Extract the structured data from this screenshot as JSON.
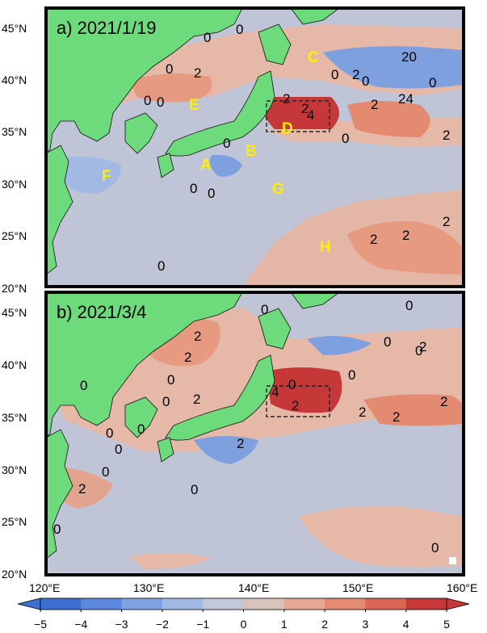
{
  "panels": [
    {
      "title": "a) 2021/1/19",
      "regions": [
        "A",
        "B",
        "C",
        "D",
        "E",
        "F",
        "G",
        "H"
      ],
      "contour_labels": [
        "0",
        "0",
        "0",
        "2",
        "0",
        "0",
        "2",
        "0",
        "0",
        "2",
        "20",
        "0",
        "2",
        "24",
        "2",
        "4",
        "0",
        "2",
        "0",
        "0",
        "0",
        "2",
        "2",
        "2",
        "0"
      ]
    },
    {
      "title": "b) 2021/3/4",
      "contour_labels": [
        "0",
        "2",
        "2",
        "0",
        "0",
        "2",
        "0",
        "0",
        "4",
        "0",
        "2",
        "0",
        "2",
        "2",
        "0",
        "0",
        "2",
        "2",
        "0",
        "0",
        "0",
        "0",
        "0",
        "0",
        "2",
        "0",
        "2"
      ]
    }
  ],
  "y_ticks": [
    "45°N",
    "40°N",
    "35°N",
    "30°N",
    "25°N",
    "20°N"
  ],
  "x_ticks": [
    "120°E",
    "130°E",
    "140°E",
    "150°E",
    "160°E"
  ],
  "colorbar": {
    "ticks": [
      "−5",
      "−4",
      "−3",
      "−2",
      "−1",
      "0",
      "1",
      "2",
      "3",
      "4",
      "5"
    ],
    "colors": [
      "#3d6fd1",
      "#5d87dc",
      "#7fa1e2",
      "#a2b9e4",
      "#c0c8da",
      "#d8c2bc",
      "#e7a995",
      "#e38a71",
      "#da6655",
      "#c63838"
    ]
  },
  "colors": {
    "land": "#6dda7b",
    "neutral_sea": "#bfc5d6",
    "warm": "#e5b8a8",
    "warm2": "#e69a7f",
    "hot": "#c93a3a",
    "cool": "#7ea0df",
    "region_label": "#ffee00"
  }
}
